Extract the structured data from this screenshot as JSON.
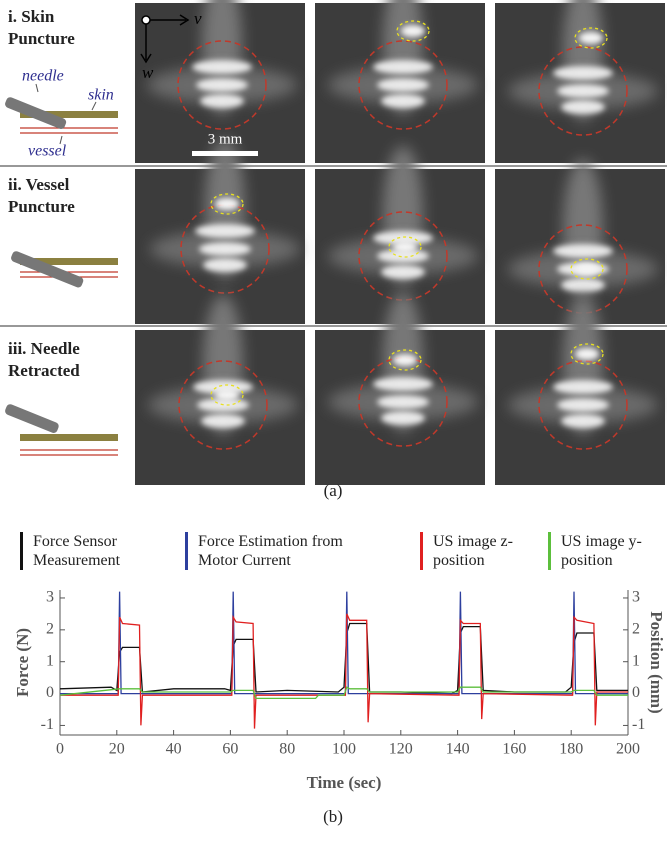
{
  "panel_a": {
    "rows": [
      {
        "label_lines": [
          "i. Skin",
          "Puncture"
        ]
      },
      {
        "label_lines": [
          "ii. Vessel",
          "Puncture"
        ]
      },
      {
        "label_lines": [
          "iii. Needle",
          "Retracted"
        ]
      }
    ],
    "schematic_labels": {
      "needle": "needle",
      "skin": "skin",
      "vessel": "vessel"
    },
    "axis_labels": {
      "v": "v",
      "w": "w"
    },
    "scale_bar": "3 mm",
    "caption": "(a)"
  },
  "chart_data": {
    "type": "line",
    "x_label": "Time (sec)",
    "y_label": "Force (N)",
    "y2_label": "Position (mm)",
    "caption": "(b)",
    "xlim": [
      0,
      200
    ],
    "xticks": [
      0,
      20,
      40,
      60,
      80,
      100,
      120,
      140,
      160,
      180,
      200
    ],
    "ylim": [
      -1.3,
      3.25
    ],
    "yticks": [
      -1,
      0,
      1,
      2,
      3
    ],
    "y2lim": [
      -1.3,
      3.25
    ],
    "y2ticks": [
      -1,
      0,
      1,
      2,
      3
    ],
    "series": [
      {
        "name": "Force Sensor Measurement",
        "color": "#111111",
        "x": [
          0,
          18,
          20,
          21,
          22,
          28,
          29,
          40,
          58,
          60,
          61,
          62,
          68,
          69,
          80,
          98,
          100,
          101,
          102,
          108,
          109,
          120,
          138,
          140,
          141,
          142,
          148,
          149,
          160,
          178,
          180,
          181,
          182,
          188,
          189,
          200
        ],
        "values": [
          0.15,
          0.2,
          0.1,
          1.3,
          1.45,
          1.45,
          0.05,
          0.15,
          0.15,
          0.1,
          1.5,
          1.7,
          1.7,
          0.05,
          0.1,
          0.05,
          0.2,
          1.9,
          2.2,
          2.2,
          0.05,
          0.05,
          0.0,
          0.1,
          1.9,
          2.1,
          2.1,
          0.1,
          0.05,
          0.05,
          0.2,
          1.6,
          1.9,
          1.9,
          0.1,
          0.1
        ]
      },
      {
        "name": "Force Estimation from Motor Current",
        "color": "#2d3f9e",
        "x": [
          0,
          20.5,
          21,
          21.5,
          60.5,
          61,
          61.5,
          100.5,
          101,
          101.5,
          140.5,
          141,
          141.5,
          180.5,
          181,
          181.5,
          200
        ],
        "values": [
          0,
          0,
          3.2,
          0,
          0,
          3.2,
          0,
          0,
          3.2,
          0,
          0,
          3.2,
          0,
          0,
          3.2,
          0,
          0
        ]
      },
      {
        "name": "US image z-position",
        "color": "#e02020",
        "axis": "y2",
        "x": [
          0,
          20.5,
          21,
          22,
          28,
          28.5,
          29,
          60.5,
          61,
          62,
          68,
          68.5,
          69,
          100.5,
          101,
          102,
          108,
          108.5,
          109,
          140.5,
          141,
          142,
          148,
          148.5,
          149,
          180.5,
          181,
          182,
          188,
          188.5,
          189,
          200
        ],
        "values": [
          -0.05,
          -0.05,
          2.4,
          2.2,
          2.15,
          -1.0,
          -0.05,
          -0.05,
          2.4,
          2.25,
          2.2,
          -1.1,
          -0.05,
          -0.05,
          2.5,
          2.3,
          2.3,
          -0.9,
          0.0,
          -0.05,
          2.3,
          2.2,
          2.2,
          -0.8,
          0.0,
          -0.05,
          2.4,
          2.3,
          2.2,
          -1.0,
          0.05,
          0.05
        ]
      },
      {
        "name": "US image y-position",
        "color": "#5cbf3c",
        "axis": "y2",
        "x": [
          0,
          21,
          22,
          28,
          29,
          60,
          61,
          62,
          68,
          69,
          90,
          91,
          100,
          101,
          102,
          108,
          109,
          140,
          141,
          142,
          148,
          149,
          180,
          181,
          182,
          188,
          189,
          200
        ],
        "values": [
          -0.05,
          0.15,
          0.15,
          0.15,
          0.05,
          0.05,
          0.1,
          0.1,
          0.1,
          -0.15,
          -0.15,
          -0.05,
          -0.05,
          0.2,
          0.15,
          0.15,
          0.05,
          0.05,
          0.2,
          0.2,
          0.2,
          0.05,
          0.05,
          0.1,
          0.1,
          0.1,
          -0.05,
          -0.05
        ]
      }
    ]
  }
}
